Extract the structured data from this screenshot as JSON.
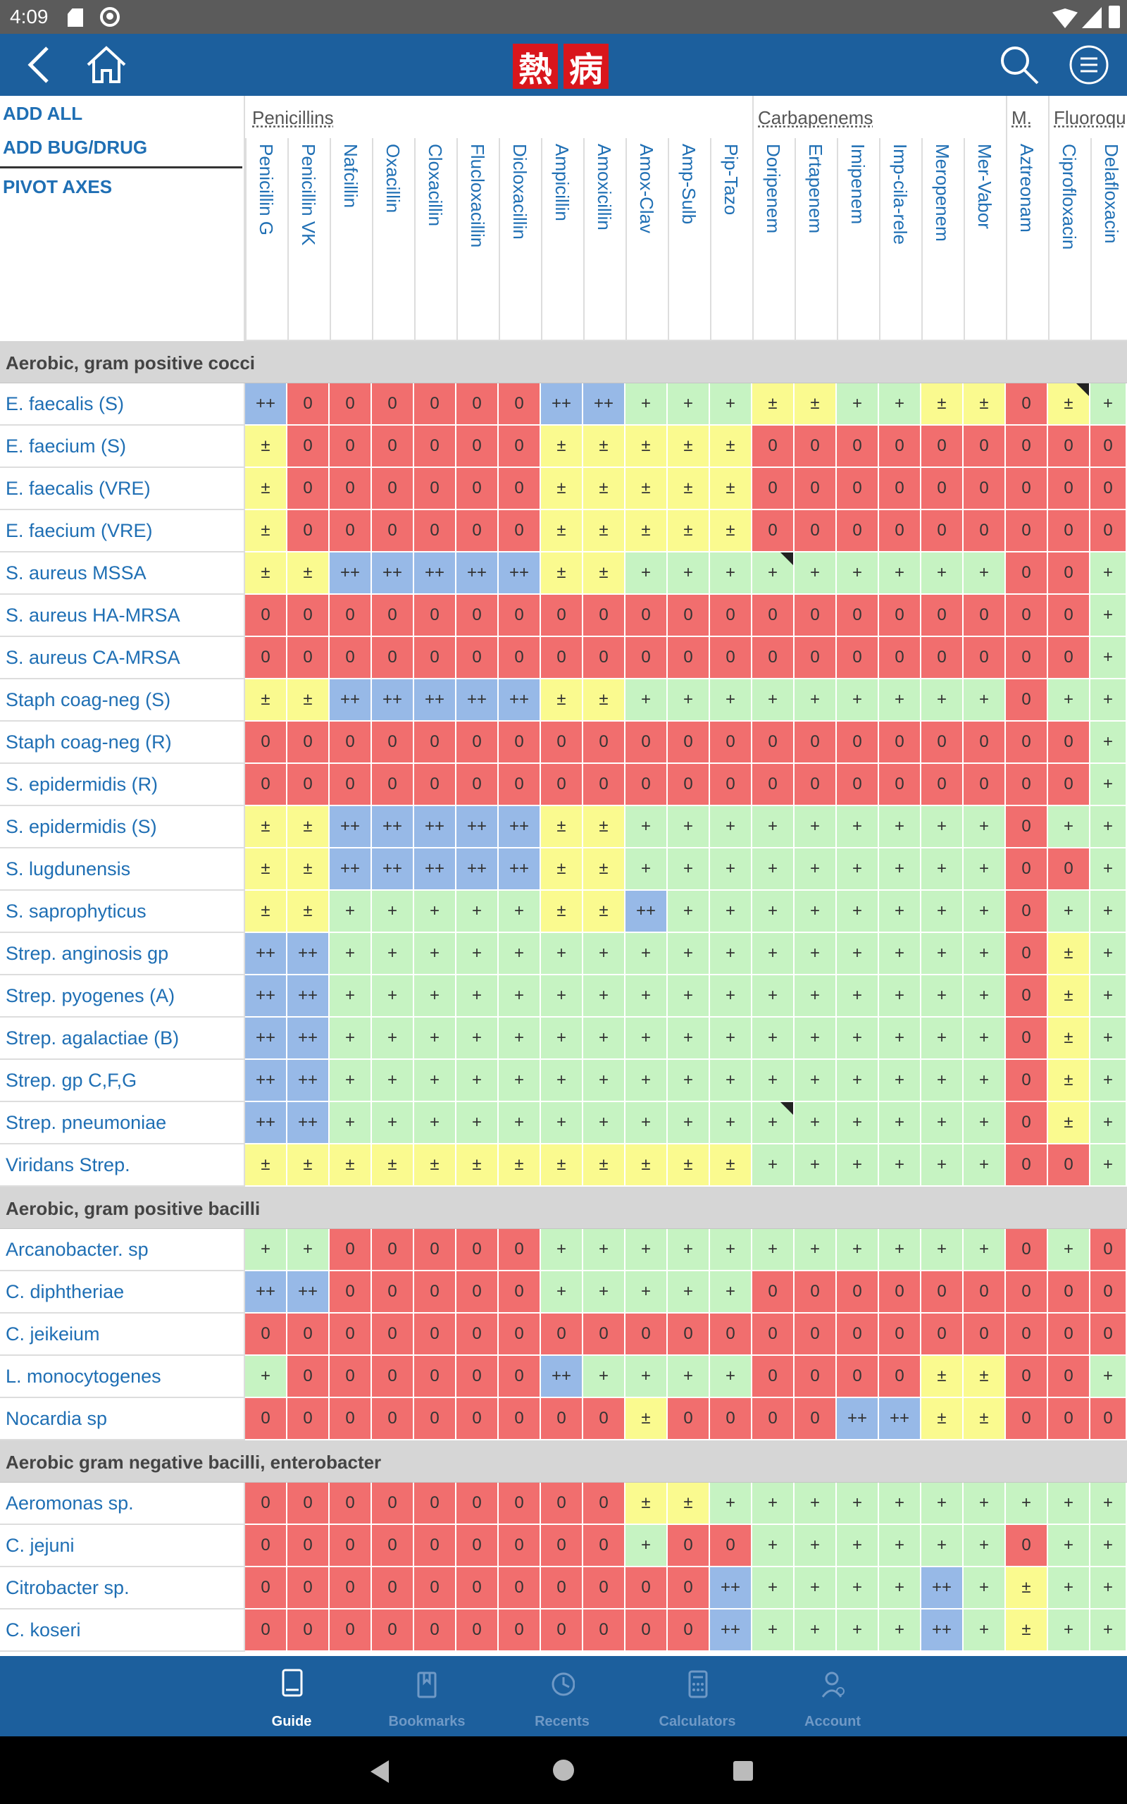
{
  "status": {
    "time": "4:09"
  },
  "appbar": {
    "logo_chars": [
      "熱",
      "病"
    ]
  },
  "toolbar": {
    "add_all": "ADD ALL",
    "add_bug_drug": "ADD BUG/DRUG",
    "pivot_axes": "PIVOT AXES"
  },
  "groups": [
    "Penicillins",
    "Carbapenems",
    "M.",
    "Fluoroqu"
  ],
  "drugs": [
    "Penicillin G",
    "Penicillin VK",
    "Nafcillin",
    "Oxacillin",
    "Cloxacillin",
    "Flucloxacillin",
    "Dicloxacillin",
    "Ampicillin",
    "Amoxicillin",
    "Amox-Clav",
    "Amp-Sulb",
    "Pip-Tazo",
    "Doripenem",
    "Ertapenem",
    "Imipenem",
    "Imp-cila-rele",
    "Meropenem",
    "Mer-Vabor",
    "Aztreonam",
    "Ciprofloxacin",
    "Delafloxacin"
  ],
  "sections": [
    {
      "title": "Aerobic, gram positive cocci",
      "rows": [
        {
          "name": "E. faecalis (S)",
          "cells": [
            "++",
            "0",
            "0",
            "0",
            "0",
            "0",
            "0",
            "++",
            "++",
            "+",
            "+",
            "+",
            "±",
            "±",
            "+",
            "+",
            "±",
            "±",
            "0",
            "±",
            "+"
          ]
        },
        {
          "name": "E. faecium (S)",
          "cells": [
            "±",
            "0",
            "0",
            "0",
            "0",
            "0",
            "0",
            "±",
            "±",
            "±",
            "±",
            "±",
            "0",
            "0",
            "0",
            "0",
            "0",
            "0",
            "0",
            "0",
            "0"
          ]
        },
        {
          "name": "E. faecalis (VRE)",
          "cells": [
            "±",
            "0",
            "0",
            "0",
            "0",
            "0",
            "0",
            "±",
            "±",
            "±",
            "±",
            "±",
            "0",
            "0",
            "0",
            "0",
            "0",
            "0",
            "0",
            "0",
            "0"
          ]
        },
        {
          "name": "E. faecium (VRE)",
          "cells": [
            "±",
            "0",
            "0",
            "0",
            "0",
            "0",
            "0",
            "±",
            "±",
            "±",
            "±",
            "±",
            "0",
            "0",
            "0",
            "0",
            "0",
            "0",
            "0",
            "0",
            "0"
          ]
        },
        {
          "name": "S. aureus MSSA",
          "cells": [
            "±",
            "±",
            "++",
            "++",
            "++",
            "++",
            "++",
            "±",
            "±",
            "+",
            "+",
            "+",
            "+",
            "+",
            "+",
            "+",
            "+",
            "+",
            "0",
            "0",
            "+"
          ]
        },
        {
          "name": "S. aureus HA-MRSA",
          "cells": [
            "0",
            "0",
            "0",
            "0",
            "0",
            "0",
            "0",
            "0",
            "0",
            "0",
            "0",
            "0",
            "0",
            "0",
            "0",
            "0",
            "0",
            "0",
            "0",
            "0",
            "+"
          ]
        },
        {
          "name": "S. aureus CA-MRSA",
          "cells": [
            "0",
            "0",
            "0",
            "0",
            "0",
            "0",
            "0",
            "0",
            "0",
            "0",
            "0",
            "0",
            "0",
            "0",
            "0",
            "0",
            "0",
            "0",
            "0",
            "0",
            "+"
          ]
        },
        {
          "name": "Staph coag-neg (S)",
          "cells": [
            "±",
            "±",
            "++",
            "++",
            "++",
            "++",
            "++",
            "±",
            "±",
            "+",
            "+",
            "+",
            "+",
            "+",
            "+",
            "+",
            "+",
            "+",
            "0",
            "+",
            "+"
          ]
        },
        {
          "name": "Staph coag-neg (R)",
          "cells": [
            "0",
            "0",
            "0",
            "0",
            "0",
            "0",
            "0",
            "0",
            "0",
            "0",
            "0",
            "0",
            "0",
            "0",
            "0",
            "0",
            "0",
            "0",
            "0",
            "0",
            "+"
          ]
        },
        {
          "name": "S. epidermidis (R)",
          "cells": [
            "0",
            "0",
            "0",
            "0",
            "0",
            "0",
            "0",
            "0",
            "0",
            "0",
            "0",
            "0",
            "0",
            "0",
            "0",
            "0",
            "0",
            "0",
            "0",
            "0",
            "+"
          ]
        },
        {
          "name": "S. epidermidis (S)",
          "cells": [
            "±",
            "±",
            "++",
            "++",
            "++",
            "++",
            "++",
            "±",
            "±",
            "+",
            "+",
            "+",
            "+",
            "+",
            "+",
            "+",
            "+",
            "+",
            "0",
            "+",
            "+"
          ]
        },
        {
          "name": "S. lugdunensis",
          "cells": [
            "±",
            "±",
            "++",
            "++",
            "++",
            "++",
            "++",
            "±",
            "±",
            "+",
            "+",
            "+",
            "+",
            "+",
            "+",
            "+",
            "+",
            "+",
            "0",
            "0",
            "+"
          ]
        },
        {
          "name": "S. saprophyticus",
          "cells": [
            "±",
            "±",
            "+",
            "+",
            "+",
            "+",
            "+",
            "±",
            "±",
            "++",
            "+",
            "+",
            "+",
            "+",
            "+",
            "+",
            "+",
            "+",
            "0",
            "+",
            "+"
          ]
        },
        {
          "name": "Strep. anginosis gp",
          "cells": [
            "++",
            "++",
            "+",
            "+",
            "+",
            "+",
            "+",
            "+",
            "+",
            "+",
            "+",
            "+",
            "+",
            "+",
            "+",
            "+",
            "+",
            "+",
            "0",
            "±",
            "+"
          ]
        },
        {
          "name": "Strep. pyogenes (A)",
          "cells": [
            "++",
            "++",
            "+",
            "+",
            "+",
            "+",
            "+",
            "+",
            "+",
            "+",
            "+",
            "+",
            "+",
            "+",
            "+",
            "+",
            "+",
            "+",
            "0",
            "±",
            "+"
          ]
        },
        {
          "name": "Strep. agalactiae (B)",
          "cells": [
            "++",
            "++",
            "+",
            "+",
            "+",
            "+",
            "+",
            "+",
            "+",
            "+",
            "+",
            "+",
            "+",
            "+",
            "+",
            "+",
            "+",
            "+",
            "0",
            "±",
            "+"
          ]
        },
        {
          "name": "Strep. gp C,F,G",
          "cells": [
            "++",
            "++",
            "+",
            "+",
            "+",
            "+",
            "+",
            "+",
            "+",
            "+",
            "+",
            "+",
            "+",
            "+",
            "+",
            "+",
            "+",
            "+",
            "0",
            "±",
            "+"
          ]
        },
        {
          "name": "Strep. pneumoniae",
          "cells": [
            "++",
            "++",
            "+",
            "+",
            "+",
            "+",
            "+",
            "+",
            "+",
            "+",
            "+",
            "+",
            "+",
            "+",
            "+",
            "+",
            "+",
            "+",
            "0",
            "±",
            "+"
          ]
        },
        {
          "name": "Viridans Strep.",
          "cells": [
            "±",
            "±",
            "±",
            "±",
            "±",
            "±",
            "±",
            "±",
            "±",
            "±",
            "±",
            "±",
            "+",
            "+",
            "+",
            "+",
            "+",
            "+",
            "0",
            "0",
            "+"
          ]
        }
      ]
    },
    {
      "title": "Aerobic, gram positive bacilli",
      "rows": [
        {
          "name": "Arcanobacter. sp",
          "cells": [
            "+",
            "+",
            "0",
            "0",
            "0",
            "0",
            "0",
            "+",
            "+",
            "+",
            "+",
            "+",
            "+",
            "+",
            "+",
            "+",
            "+",
            "+",
            "0",
            "+",
            "0"
          ]
        },
        {
          "name": "C. diphtheriae",
          "cells": [
            "++",
            "++",
            "0",
            "0",
            "0",
            "0",
            "0",
            "+",
            "+",
            "+",
            "+",
            "+",
            "0",
            "0",
            "0",
            "0",
            "0",
            "0",
            "0",
            "0",
            "0"
          ]
        },
        {
          "name": "C. jeikeium",
          "cells": [
            "0",
            "0",
            "0",
            "0",
            "0",
            "0",
            "0",
            "0",
            "0",
            "0",
            "0",
            "0",
            "0",
            "0",
            "0",
            "0",
            "0",
            "0",
            "0",
            "0",
            "0"
          ]
        },
        {
          "name": "L. monocytogenes",
          "cells": [
            "+",
            "0",
            "0",
            "0",
            "0",
            "0",
            "0",
            "++",
            "+",
            "+",
            "+",
            "+",
            "0",
            "0",
            "0",
            "0",
            "±",
            "±",
            "0",
            "0",
            "+"
          ]
        },
        {
          "name": "Nocardia sp",
          "cells": [
            "0",
            "0",
            "0",
            "0",
            "0",
            "0",
            "0",
            "0",
            "0",
            "±",
            "0",
            "0",
            "0",
            "0",
            "++",
            "++",
            "±",
            "±",
            "0",
            "0",
            "0"
          ]
        }
      ]
    },
    {
      "title": "Aerobic gram negative bacilli, enterobacter",
      "rows": [
        {
          "name": "Aeromonas sp.",
          "cells": [
            "0",
            "0",
            "0",
            "0",
            "0",
            "0",
            "0",
            "0",
            "0",
            "±",
            "±",
            "+",
            "+",
            "+",
            "+",
            "+",
            "+",
            "+",
            "+",
            "+",
            "+"
          ]
        },
        {
          "name": "C. jejuni",
          "cells": [
            "0",
            "0",
            "0",
            "0",
            "0",
            "0",
            "0",
            "0",
            "0",
            "+",
            "0",
            "0",
            "+",
            "+",
            "+",
            "+",
            "+",
            "+",
            "0",
            "+",
            "+"
          ]
        },
        {
          "name": "Citrobacter sp.",
          "cells": [
            "0",
            "0",
            "0",
            "0",
            "0",
            "0",
            "0",
            "0",
            "0",
            "0",
            "0",
            "++",
            "+",
            "+",
            "+",
            "+",
            "++",
            "+",
            "±",
            "+",
            "+"
          ]
        },
        {
          "name": "C. koseri",
          "cells": [
            "0",
            "0",
            "0",
            "0",
            "0",
            "0",
            "0",
            "0",
            "0",
            "0",
            "0",
            "++",
            "+",
            "+",
            "+",
            "+",
            "++",
            "+",
            "±",
            "+",
            "+"
          ]
        }
      ]
    }
  ],
  "nav": [
    {
      "label": "Guide",
      "icon": "book-icon"
    },
    {
      "label": "Bookmarks",
      "icon": "bookmarks-icon"
    },
    {
      "label": "Recents",
      "icon": "history-icon"
    },
    {
      "label": "Calculators",
      "icon": "calculator-icon"
    },
    {
      "label": "Account",
      "icon": "account-icon"
    }
  ]
}
